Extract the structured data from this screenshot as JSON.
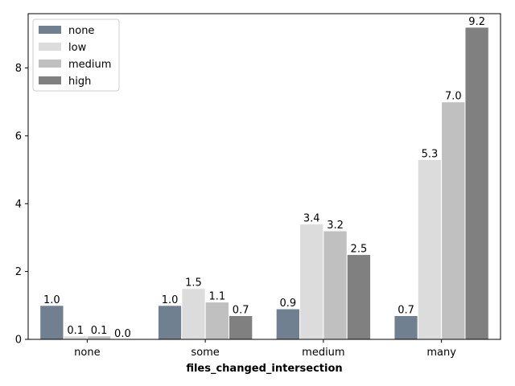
{
  "chart_data": {
    "type": "bar",
    "xlabel": "files_changed_intersection",
    "ylabel": "",
    "ylim": [
      0,
      9.6
    ],
    "yticks": [
      0,
      2,
      4,
      6,
      8
    ],
    "categories": [
      "none",
      "some",
      "medium",
      "many"
    ],
    "legend_position": "top-left",
    "grid": false,
    "series": [
      {
        "name": "none",
        "color": "#708090",
        "values": [
          1.0,
          1.0,
          0.9,
          0.7
        ],
        "labels": [
          "1.0",
          "1.0",
          "0.9",
          "0.7"
        ]
      },
      {
        "name": "low",
        "color": "#dcdcdc",
        "values": [
          0.1,
          1.5,
          3.4,
          5.3
        ],
        "labels": [
          "0.1",
          "1.5",
          "3.4",
          "5.3"
        ]
      },
      {
        "name": "medium",
        "color": "#c0c0c0",
        "values": [
          0.1,
          1.1,
          3.2,
          7.0
        ],
        "labels": [
          "0.1",
          "1.1",
          "3.2",
          "7.0"
        ]
      },
      {
        "name": "high",
        "color": "#808080",
        "values": [
          0.0,
          0.7,
          2.5,
          9.2
        ],
        "labels": [
          "0.0",
          "0.7",
          "2.5",
          "9.2"
        ]
      }
    ]
  }
}
